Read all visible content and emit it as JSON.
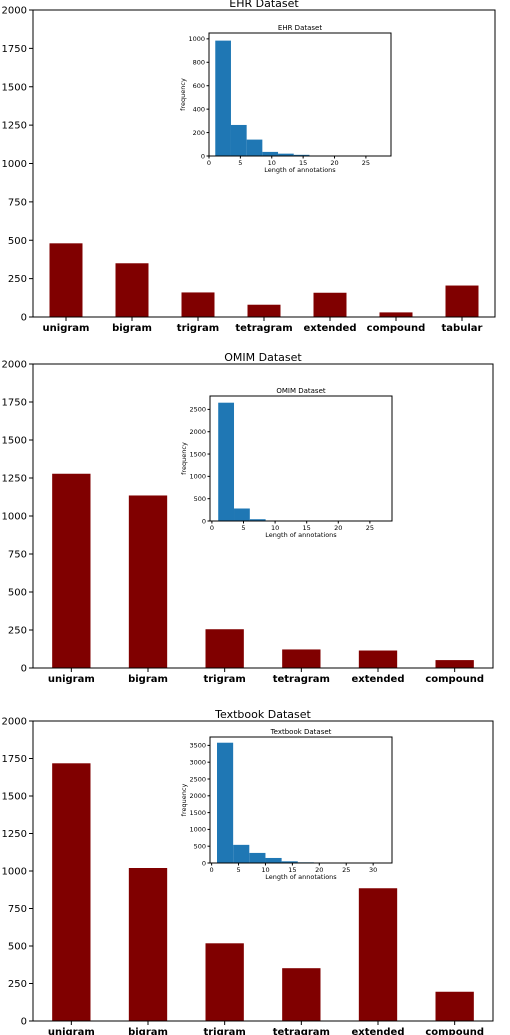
{
  "chart_data": [
    {
      "type": "bar",
      "title": "EHR Dataset",
      "categories": [
        "unigram",
        "bigram",
        "trigram",
        "tetragram",
        "extended",
        "compound",
        "tabular"
      ],
      "values": [
        480,
        350,
        160,
        80,
        158,
        30,
        205
      ],
      "yticks": [
        0,
        250,
        500,
        750,
        1000,
        1250,
        1500,
        1750,
        2000
      ],
      "ylim": [
        0,
        2000
      ],
      "bar_color": "#800000",
      "inset": {
        "type": "histogram",
        "title": "EHR Dataset",
        "xlabel": "Length of annotations",
        "ylabel": "frequency",
        "bins": [
          [
            1,
            3.5,
            985
          ],
          [
            3.5,
            6,
            265
          ],
          [
            6,
            8.5,
            140
          ],
          [
            8.5,
            11,
            35
          ],
          [
            11,
            13.5,
            20
          ],
          [
            13.5,
            16,
            10
          ],
          [
            16,
            18.5,
            3
          ]
        ],
        "xlim": [
          0,
          29
        ],
        "ylim": [
          0,
          1050
        ],
        "xticks": [
          0,
          5,
          10,
          15,
          20,
          25
        ],
        "yticks": [
          0,
          200,
          400,
          600,
          800,
          1000
        ],
        "bar_color": "#1f77b4"
      }
    },
    {
      "type": "bar",
      "title": "OMIM Dataset",
      "categories": [
        "unigram",
        "bigram",
        "trigram",
        "tetragram",
        "extended",
        "compound"
      ],
      "values": [
        1278,
        1135,
        255,
        122,
        115,
        52
      ],
      "yticks": [
        0,
        250,
        500,
        750,
        1000,
        1250,
        1500,
        1750,
        2000
      ],
      "ylim": [
        0,
        2000
      ],
      "bar_color": "#800000",
      "inset": {
        "type": "histogram",
        "title": "OMIM Dataset",
        "xlabel": "Length of annotations",
        "ylabel": "frequency",
        "bins": [
          [
            1,
            3.5,
            2650
          ],
          [
            3.5,
            6,
            280
          ],
          [
            6,
            8.5,
            40
          ],
          [
            8.5,
            11,
            10
          ],
          [
            11,
            13.5,
            3
          ]
        ],
        "xlim": [
          -0.3,
          28.5
        ],
        "ylim": [
          0,
          2800
        ],
        "xticks": [
          0,
          5,
          10,
          15,
          20,
          25
        ],
        "yticks": [
          0,
          500,
          1000,
          1500,
          2000,
          2500
        ],
        "bar_color": "#1f77b4"
      }
    },
    {
      "type": "bar",
      "title": "Textbook Dataset",
      "categories": [
        "unigram",
        "bigram",
        "trigram",
        "tetragram",
        "extended",
        "compound"
      ],
      "values": [
        1718,
        1020,
        518,
        352,
        885,
        195
      ],
      "yticks": [
        0,
        250,
        500,
        750,
        1000,
        1250,
        1500,
        1750,
        2000
      ],
      "ylim": [
        0,
        2000
      ],
      "bar_color": "#800000",
      "inset": {
        "type": "histogram",
        "title": "Textbook Dataset",
        "xlabel": "Length of annotations",
        "ylabel": "frequency",
        "bins": [
          [
            1,
            4,
            3580
          ],
          [
            4,
            7,
            540
          ],
          [
            7,
            10,
            300
          ],
          [
            10,
            13,
            150
          ],
          [
            13,
            16,
            50
          ],
          [
            16,
            19,
            20
          ],
          [
            19,
            22,
            8
          ]
        ],
        "xlim": [
          -0.3,
          33.5
        ],
        "ylim": [
          0,
          3750
        ],
        "xticks": [
          0,
          5,
          10,
          15,
          20,
          25,
          30
        ],
        "yticks": [
          0,
          500,
          1000,
          1500,
          2000,
          2500,
          3000,
          3500
        ],
        "bar_color": "#1f77b4"
      }
    }
  ]
}
